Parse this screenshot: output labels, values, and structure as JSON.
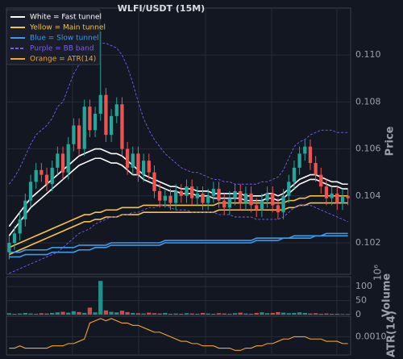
{
  "chart_data": {
    "type": "candlestick",
    "title": "WLFI/USDT (15M)",
    "y_label": "Price",
    "up_color": "#26a69a",
    "down_color": "#ef5350",
    "grid": true,
    "legend": "upper left",
    "ylim": [
      0.10066,
      0.112
    ],
    "yticks": [
      0.102,
      0.104,
      0.106,
      0.108,
      {
        "value": 0.11,
        "label": "0.110"
      }
    ],
    "open": [
      0.1016,
      0.102,
      0.1024,
      0.103,
      0.1038,
      0.1046,
      0.1051,
      0.1049,
      0.1045,
      0.1052,
      0.1058,
      0.105,
      0.1062,
      0.107,
      0.106,
      0.1078,
      0.1068,
      0.1075,
      0.1083,
      0.1066,
      0.1074,
      0.1079,
      0.106,
      0.1052,
      0.1058,
      0.1049,
      0.1055,
      0.105,
      0.1042,
      0.1038,
      0.104,
      0.1037,
      0.1042,
      0.104,
      0.1044,
      0.1039,
      0.1041,
      0.1037,
      0.104,
      0.1043,
      0.1038,
      0.1035,
      0.1039,
      0.1042,
      0.1037,
      0.1041,
      0.1036,
      0.1034,
      0.1038,
      0.1041,
      0.1036,
      0.1033,
      0.104,
      0.1046,
      0.1052,
      0.1058,
      0.1061,
      0.1054,
      0.1049,
      0.1044,
      0.1039,
      0.1041,
      0.1037,
      0.104
    ],
    "high": [
      0.1023,
      0.1027,
      0.1033,
      0.1041,
      0.1049,
      0.1054,
      0.1054,
      0.1052,
      0.1055,
      0.1061,
      0.1061,
      0.1065,
      0.1073,
      0.1073,
      0.1081,
      0.1081,
      0.1078,
      0.111,
      0.1086,
      0.1077,
      0.1082,
      0.1082,
      0.1063,
      0.1061,
      0.1061,
      0.1058,
      0.1058,
      0.1053,
      0.1045,
      0.1043,
      0.1043,
      0.1045,
      0.1045,
      0.1047,
      0.1047,
      0.1044,
      0.1044,
      0.1043,
      0.1046,
      0.1046,
      0.1041,
      0.1042,
      0.1045,
      0.1045,
      0.1044,
      0.1044,
      0.1039,
      0.1041,
      0.1044,
      0.1044,
      0.1039,
      0.1043,
      0.1049,
      0.1055,
      0.1061,
      0.1064,
      0.1064,
      0.1057,
      0.1052,
      0.1047,
      0.1044,
      0.1044,
      0.1043,
      0.1043
    ],
    "low": [
      0.1013,
      0.1017,
      0.1021,
      0.1027,
      0.1035,
      0.1043,
      0.1046,
      0.1042,
      0.1042,
      0.1049,
      0.1047,
      0.1047,
      0.1059,
      0.1057,
      0.1057,
      0.1065,
      0.1065,
      0.1072,
      0.1063,
      0.1063,
      0.1071,
      0.1057,
      0.1049,
      0.1049,
      0.1046,
      0.1046,
      0.1047,
      0.1039,
      0.1035,
      0.1035,
      0.1034,
      0.1034,
      0.1037,
      0.1037,
      0.1036,
      0.1036,
      0.1034,
      0.1034,
      0.1037,
      0.1035,
      0.1032,
      0.1032,
      0.1036,
      0.1034,
      0.1034,
      0.1033,
      0.1031,
      0.1031,
      0.1035,
      0.1033,
      0.103,
      0.103,
      0.1037,
      0.1043,
      0.1049,
      0.1055,
      0.1051,
      0.1046,
      0.1041,
      0.1036,
      0.1036,
      0.1034,
      0.1034,
      0.1036
    ],
    "close": [
      0.102,
      0.1024,
      0.103,
      0.1038,
      0.1046,
      0.1051,
      0.1049,
      0.1045,
      0.1052,
      0.1058,
      0.105,
      0.1062,
      0.107,
      0.106,
      0.1078,
      0.1068,
      0.1075,
      0.1083,
      0.1066,
      0.1074,
      0.1079,
      0.106,
      0.1052,
      0.1058,
      0.1049,
      0.1055,
      0.105,
      0.1042,
      0.1038,
      0.104,
      0.1037,
      0.1042,
      0.104,
      0.1044,
      0.1039,
      0.1041,
      0.1037,
      0.104,
      0.1043,
      0.1038,
      0.1035,
      0.1039,
      0.1042,
      0.1037,
      0.1041,
      0.1036,
      0.1034,
      0.1038,
      0.1041,
      0.1036,
      0.1033,
      0.104,
      0.1046,
      0.1052,
      0.1058,
      0.1061,
      0.1054,
      0.1049,
      0.1044,
      0.1039,
      0.1041,
      0.1037,
      0.104,
      0.1039
    ],
    "overlays": [
      {
        "name": "White = Fast tunnel",
        "color": "#ffffff",
        "dashed": false,
        "lines": [
          [
            0.1027,
            0.103,
            0.1033,
            0.1036,
            0.1039,
            0.1041,
            0.1043,
            0.1045,
            0.1047,
            0.1049,
            0.1051,
            0.1053,
            0.1055,
            0.1057,
            0.1058,
            0.1059,
            0.106,
            0.106,
            0.1059,
            0.1058,
            0.1058,
            0.1057,
            0.1055,
            0.1053,
            0.1051,
            0.1049,
            0.1048,
            0.1047,
            0.1046,
            0.1045,
            0.1044,
            0.1044,
            0.1043,
            0.1043,
            0.1043,
            0.1042,
            0.1042,
            0.1042,
            0.1041,
            0.1041,
            0.1041,
            0.1041,
            0.1041,
            0.1041,
            0.104,
            0.104,
            0.104,
            0.104,
            0.1041,
            0.1041,
            0.104,
            0.1041,
            0.1043,
            0.1045,
            0.1047,
            0.1048,
            0.1049,
            0.1049,
            0.1048,
            0.1047,
            0.1046,
            0.1046,
            0.1045,
            0.1045
          ],
          [
            0.1023,
            0.1026,
            0.1029,
            0.1032,
            0.1035,
            0.1037,
            0.1039,
            0.1041,
            0.1043,
            0.1045,
            0.1047,
            0.1049,
            0.1051,
            0.1053,
            0.1054,
            0.1055,
            0.1056,
            0.1056,
            0.1055,
            0.1054,
            0.1054,
            0.1053,
            0.1051,
            0.1049,
            0.1049,
            0.1047,
            0.1046,
            0.1045,
            0.1044,
            0.1043,
            0.1042,
            0.1042,
            0.1041,
            0.1041,
            0.1041,
            0.104,
            0.104,
            0.104,
            0.1039,
            0.1039,
            0.1039,
            0.1039,
            0.1039,
            0.1039,
            0.1038,
            0.1038,
            0.1038,
            0.1038,
            0.1039,
            0.1039,
            0.1038,
            0.1039,
            0.1041,
            0.1043,
            0.1045,
            0.1046,
            0.1047,
            0.1047,
            0.1046,
            0.1045,
            0.1044,
            0.1044,
            0.1043,
            0.1043
          ]
        ]
      },
      {
        "name": "Yellow = Main tunnel",
        "color": "#f5c542",
        "dashed": false,
        "lines": [
          [
            0.1018,
            0.1019,
            0.102,
            0.1021,
            0.1022,
            0.1023,
            0.1024,
            0.1025,
            0.1026,
            0.1027,
            0.1028,
            0.1029,
            0.103,
            0.1031,
            0.1032,
            0.1032,
            0.1033,
            0.1033,
            0.1034,
            0.1034,
            0.1034,
            0.1035,
            0.1035,
            0.1035,
            0.1035,
            0.1036,
            0.1036,
            0.1036,
            0.1036,
            0.1036,
            0.1036,
            0.1036,
            0.1036,
            0.1036,
            0.1036,
            0.1036,
            0.1036,
            0.1036,
            0.1036,
            0.1037,
            0.1037,
            0.1037,
            0.1037,
            0.1037,
            0.1037,
            0.1037,
            0.1037,
            0.1037,
            0.1037,
            0.1037,
            0.1037,
            0.1037,
            0.1038,
            0.1038,
            0.1039,
            0.1039,
            0.104,
            0.104,
            0.104,
            0.104,
            0.104,
            0.104,
            0.104,
            0.104
          ],
          [
            0.1015,
            0.1016,
            0.1017,
            0.1018,
            0.1019,
            0.102,
            0.1021,
            0.1022,
            0.1023,
            0.1024,
            0.1025,
            0.1026,
            0.1027,
            0.1028,
            0.1029,
            0.1029,
            0.103,
            0.103,
            0.1031,
            0.1031,
            0.1031,
            0.1032,
            0.1032,
            0.1032,
            0.1032,
            0.1033,
            0.1033,
            0.1033,
            0.1033,
            0.1033,
            0.1033,
            0.1033,
            0.1033,
            0.1033,
            0.1033,
            0.1033,
            0.1033,
            0.1033,
            0.1033,
            0.1034,
            0.1034,
            0.1034,
            0.1034,
            0.1034,
            0.1034,
            0.1034,
            0.1034,
            0.1034,
            0.1034,
            0.1034,
            0.1034,
            0.1034,
            0.1035,
            0.1035,
            0.1036,
            0.1036,
            0.1037,
            0.1037,
            0.1037,
            0.1037,
            0.1037,
            0.1037,
            0.1037,
            0.1037
          ]
        ]
      },
      {
        "name": "Blue = Slow tunnel",
        "color": "#3d9be9",
        "dashed": false,
        "lines": [
          [
            0.1016,
            0.1016,
            0.1016,
            0.1017,
            0.1017,
            0.1017,
            0.1017,
            0.1017,
            0.1018,
            0.1018,
            0.1018,
            0.1018,
            0.1018,
            0.1019,
            0.1019,
            0.1019,
            0.1019,
            0.1019,
            0.1019,
            0.102,
            0.102,
            0.102,
            0.102,
            0.102,
            0.102,
            0.102,
            0.102,
            0.102,
            0.102,
            0.1021,
            0.1021,
            0.1021,
            0.1021,
            0.1021,
            0.1021,
            0.1021,
            0.1021,
            0.1021,
            0.1021,
            0.1021,
            0.1021,
            0.1021,
            0.1021,
            0.1021,
            0.1021,
            0.1021,
            0.1022,
            0.1022,
            0.1022,
            0.1022,
            0.1022,
            0.1022,
            0.1022,
            0.1023,
            0.1023,
            0.1023,
            0.1023,
            0.1023,
            0.1023,
            0.1024,
            0.1024,
            0.1024,
            0.1024,
            0.1024
          ],
          [
            0.1014,
            0.1014,
            0.1014,
            0.1015,
            0.1015,
            0.1015,
            0.1015,
            0.1015,
            0.1016,
            0.1016,
            0.1016,
            0.1016,
            0.1016,
            0.1017,
            0.1017,
            0.1017,
            0.1018,
            0.1018,
            0.1018,
            0.1019,
            0.1019,
            0.1019,
            0.1019,
            0.1019,
            0.1019,
            0.1019,
            0.1019,
            0.1019,
            0.1019,
            0.102,
            0.102,
            0.102,
            0.102,
            0.102,
            0.102,
            0.102,
            0.102,
            0.102,
            0.102,
            0.102,
            0.102,
            0.102,
            0.102,
            0.102,
            0.102,
            0.102,
            0.1021,
            0.1021,
            0.1021,
            0.1021,
            0.1021,
            0.1022,
            0.1022,
            0.1022,
            0.1022,
            0.1022,
            0.1022,
            0.1023,
            0.1023,
            0.1023,
            0.1023,
            0.1023,
            0.1023,
            0.1023
          ]
        ]
      },
      {
        "name": "Purple = BB band",
        "color": "#7b5cf0",
        "dashed": true,
        "lines": [
          [
            0.1045,
            0.1048,
            0.1052,
            0.1057,
            0.1062,
            0.1066,
            0.1068,
            0.107,
            0.1073,
            0.1078,
            0.108,
            0.1086,
            0.1092,
            0.1096,
            0.11,
            0.1102,
            0.1104,
            0.1105,
            0.1105,
            0.1104,
            0.1103,
            0.11,
            0.1095,
            0.1088,
            0.108,
            0.1073,
            0.1068,
            0.1064,
            0.1061,
            0.1058,
            0.1056,
            0.1054,
            0.1052,
            0.1051,
            0.105,
            0.105,
            0.1049,
            0.1048,
            0.1047,
            0.1047,
            0.1046,
            0.1046,
            0.1045,
            0.1045,
            0.1045,
            0.1045,
            0.1045,
            0.1046,
            0.1046,
            0.1047,
            0.1048,
            0.1051,
            0.1056,
            0.1061,
            0.1063,
            0.1064,
            0.1066,
            0.1067,
            0.1068,
            0.1068,
            0.1068,
            0.1067,
            0.1067,
            0.1067
          ],
          [
            0.1007,
            0.1008,
            0.1009,
            0.101,
            0.1011,
            0.1012,
            0.1013,
            0.1014,
            0.1015,
            0.1016,
            0.1018,
            0.102,
            0.1022,
            0.1024,
            0.1025,
            0.1026,
            0.1028,
            0.1029,
            0.103,
            0.1031,
            0.1031,
            0.1032,
            0.1032,
            0.1033,
            0.1033,
            0.1034,
            0.1035,
            0.1035,
            0.1036,
            0.1036,
            0.1035,
            0.1034,
            0.1034,
            0.1034,
            0.1033,
            0.1033,
            0.1033,
            0.1033,
            0.1033,
            0.1032,
            0.1032,
            0.1032,
            0.1031,
            0.1031,
            0.1031,
            0.1031,
            0.103,
            0.103,
            0.103,
            0.103,
            0.103,
            0.1031,
            0.1033,
            0.1035,
            0.1036,
            0.1036,
            0.1036,
            0.1035,
            0.1034,
            0.1033,
            0.1032,
            0.1031,
            0.103,
            0.1029
          ]
        ]
      }
    ],
    "volume": {
      "label": "Volume",
      "offset_label": "10⁶",
      "ylim": [
        0,
        135
      ],
      "yticks": [
        0,
        50,
        100
      ],
      "values": [
        5,
        3,
        4,
        6,
        4,
        3,
        5,
        4,
        6,
        8,
        10,
        7,
        12,
        9,
        6,
        25,
        8,
        120,
        15,
        10,
        8,
        14,
        9,
        6,
        5,
        4,
        7,
        5,
        4,
        6,
        3,
        4,
        3,
        5,
        4,
        3,
        6,
        4,
        3,
        5,
        4,
        3,
        5,
        7,
        4,
        3,
        6,
        8,
        5,
        6,
        9,
        7,
        5,
        6,
        8,
        6,
        4,
        5,
        3,
        4,
        3,
        3,
        2,
        2
      ]
    },
    "atr": {
      "name": "Orange = ATR(14)",
      "label": "ATR(14)",
      "color": "#f5a623",
      "ylim": [
        0.0002,
        0.0019
      ],
      "yticks": [
        {
          "value": 0.001,
          "label": "0.0010"
        }
      ],
      "values": [
        0.0005,
        0.0005,
        0.0006,
        0.0005,
        0.0005,
        0.0005,
        0.0005,
        0.0005,
        0.0006,
        0.0006,
        0.0006,
        0.0007,
        0.0007,
        0.0008,
        0.0009,
        0.0016,
        0.0017,
        0.0018,
        0.0017,
        0.0018,
        0.0017,
        0.0016,
        0.0016,
        0.0015,
        0.0015,
        0.0014,
        0.0013,
        0.0012,
        0.0012,
        0.0011,
        0.001,
        0.0009,
        0.0008,
        0.0008,
        0.0007,
        0.0007,
        0.0006,
        0.0006,
        0.0006,
        0.0005,
        0.0005,
        0.0005,
        0.0004,
        0.0004,
        0.0005,
        0.0005,
        0.0006,
        0.0006,
        0.0007,
        0.0007,
        0.0008,
        0.0009,
        0.0009,
        0.001,
        0.001,
        0.001,
        0.0009,
        0.0009,
        0.0009,
        0.0008,
        0.0008,
        0.0008,
        0.0007,
        0.0007
      ]
    }
  }
}
